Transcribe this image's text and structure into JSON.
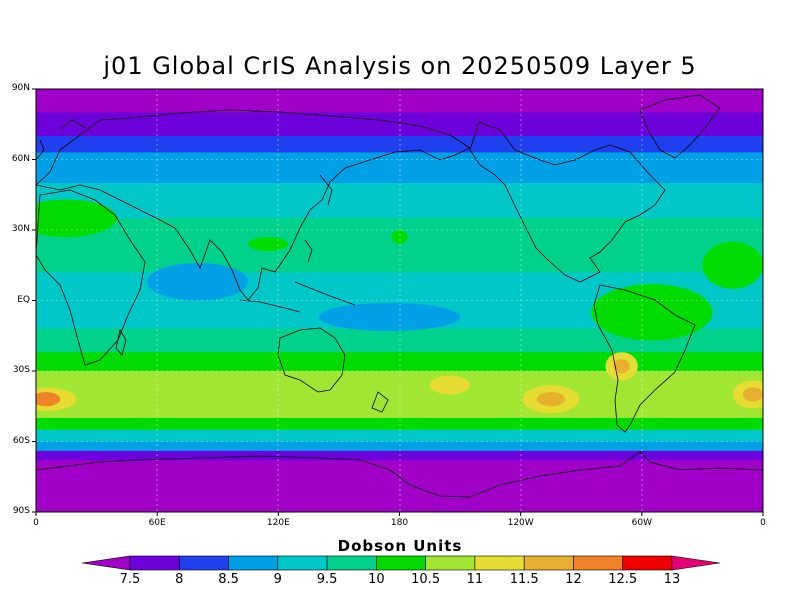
{
  "title": "j01 Global CrIS Analysis on 20250509 Layer 5",
  "lat_ticks": [
    "90N",
    "60N",
    "30N",
    "EQ",
    "30S",
    "60S",
    "90S"
  ],
  "lon_ticks": [
    "0",
    "60E",
    "120E",
    "180",
    "120W",
    "60W",
    "0"
  ],
  "colorbar": {
    "title": "Dobson Units",
    "levels": [
      "7.5",
      "8",
      "8.5",
      "9",
      "9.5",
      "10",
      "10.5",
      "11",
      "11.5",
      "12",
      "12.5",
      "13"
    ],
    "colors": [
      "#a000c8",
      "#6e00dc",
      "#2040f0",
      "#00a0e6",
      "#00c8c8",
      "#00d28c",
      "#00dc00",
      "#a0e632",
      "#e6dc32",
      "#e6af2d",
      "#f08228",
      "#f00000",
      "#e60078"
    ]
  },
  "zonal_bands": [
    {
      "lat_from": 90,
      "lat_to": 80,
      "color": "#a000c8"
    },
    {
      "lat_from": 80,
      "lat_to": 70,
      "color": "#6e00dc"
    },
    {
      "lat_from": 70,
      "lat_to": 63,
      "color": "#2040f0"
    },
    {
      "lat_from": 63,
      "lat_to": 50,
      "color": "#00a0e6"
    },
    {
      "lat_from": 50,
      "lat_to": 35,
      "color": "#00c8c8"
    },
    {
      "lat_from": 35,
      "lat_to": 12,
      "color": "#00d28c"
    },
    {
      "lat_from": 12,
      "lat_to": -12,
      "color": "#00c8c8"
    },
    {
      "lat_from": -12,
      "lat_to": -22,
      "color": "#00d28c"
    },
    {
      "lat_from": -22,
      "lat_to": -30,
      "color": "#00dc00"
    },
    {
      "lat_from": -30,
      "lat_to": -50,
      "color": "#a0e632"
    },
    {
      "lat_from": -50,
      "lat_to": -55,
      "color": "#00dc00"
    },
    {
      "lat_from": -55,
      "lat_to": -60,
      "color": "#00c8c8"
    },
    {
      "lat_from": -60,
      "lat_to": -64,
      "color": "#00a0e6"
    },
    {
      "lat_from": -64,
      "lat_to": -68,
      "color": "#6e00dc"
    },
    {
      "lat_from": -68,
      "lat_to": -90,
      "color": "#a000c8"
    }
  ],
  "regional_features": [
    {
      "lon": 15,
      "lat": 35,
      "rlon": 25,
      "rlat": 8,
      "color": "#00dc00"
    },
    {
      "lon": 80,
      "lat": 8,
      "rlon": 25,
      "rlat": 8,
      "color": "#00a0e6"
    },
    {
      "lon": 175,
      "lat": -7,
      "rlon": 35,
      "rlat": 6,
      "color": "#00a0e6"
    },
    {
      "lon": 305,
      "lat": -5,
      "rlon": 30,
      "rlat": 12,
      "color": "#00dc00"
    },
    {
      "lon": 345,
      "lat": 15,
      "rlon": 15,
      "rlat": 10,
      "color": "#00dc00"
    },
    {
      "lon": 5,
      "lat": -42,
      "rlon": 15,
      "rlat": 5,
      "color": "#e6dc32"
    },
    {
      "lon": 5,
      "lat": -42,
      "rlon": 7,
      "rlat": 3,
      "color": "#f08228"
    },
    {
      "lon": 205,
      "lat": -36,
      "rlon": 10,
      "rlat": 4,
      "color": "#e6dc32"
    },
    {
      "lon": 255,
      "lat": -42,
      "rlon": 14,
      "rlat": 6,
      "color": "#e6dc32"
    },
    {
      "lon": 255,
      "lat": -42,
      "rlon": 7,
      "rlat": 3,
      "color": "#e6af2d"
    },
    {
      "lon": 290,
      "lat": -28,
      "rlon": 8,
      "rlat": 6,
      "color": "#e6dc32"
    },
    {
      "lon": 290,
      "lat": -28,
      "rlon": 4,
      "rlat": 3,
      "color": "#e6af2d"
    },
    {
      "lon": 355,
      "lat": -40,
      "rlon": 10,
      "rlat": 6,
      "color": "#e6dc32"
    },
    {
      "lon": 355,
      "lat": -40,
      "rlon": 5,
      "rlat": 3,
      "color": "#e6af2d"
    },
    {
      "lon": 180,
      "lat": 27,
      "rlon": 4,
      "rlat": 3,
      "color": "#00dc00"
    },
    {
      "lon": 115,
      "lat": 24,
      "rlon": 10,
      "rlat": 3,
      "color": "#00dc00"
    }
  ]
}
